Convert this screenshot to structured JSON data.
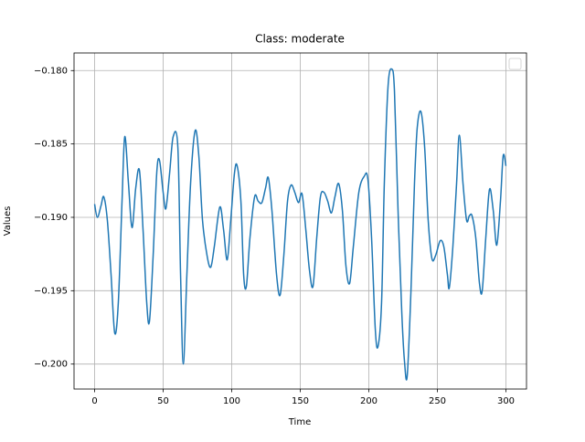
{
  "chart_data": {
    "type": "line",
    "title": "Class: moderate",
    "x_label": "Time",
    "y_label": "Values",
    "x": [
      0,
      2,
      4.7,
      6.7,
      9.3,
      12,
      14.7,
      17.3,
      20,
      22,
      24.7,
      27.3,
      30,
      32.7,
      35.3,
      38,
      40,
      42.7,
      45.3,
      47.3,
      50,
      52,
      54.7,
      57.3,
      60.7,
      62.7,
      64.7,
      67.3,
      70,
      73.3,
      76,
      78.7,
      82,
      84.7,
      87.3,
      91.3,
      94,
      96.7,
      99.3,
      102,
      104,
      106.7,
      108.7,
      110.7,
      113.3,
      116.7,
      119.3,
      122,
      124.7,
      126.7,
      129.3,
      132.7,
      135.3,
      138,
      140.7,
      143.3,
      146,
      148.7,
      151.3,
      154,
      156.7,
      159.3,
      162,
      164.7,
      167.3,
      170,
      172.7,
      175.3,
      178,
      180.7,
      183.3,
      186,
      188.7,
      192.7,
      196.7,
      199.3,
      202,
      204.7,
      206.7,
      209.3,
      211.3,
      214,
      216.7,
      218.7,
      221.3,
      224,
      226,
      228,
      230.7,
      233.3,
      235.3,
      238,
      240.7,
      243.3,
      246,
      248.7,
      252,
      254.7,
      257.3,
      258.7,
      261.3,
      264,
      266,
      268.7,
      271.3,
      273.3,
      275.3,
      278,
      280.7,
      282.7,
      285.3,
      288,
      290.7,
      293.3,
      296,
      298,
      300
    ],
    "series": [
      {
        "color": "#1f77b4",
        "values": [
          -0.1891,
          -0.19,
          -0.1892,
          -0.1886,
          -0.1902,
          -0.1939,
          -0.1979,
          -0.1958,
          -0.1889,
          -0.1845,
          -0.1877,
          -0.1907,
          -0.188,
          -0.1868,
          -0.1908,
          -0.1958,
          -0.1971,
          -0.1926,
          -0.187,
          -0.1861,
          -0.1883,
          -0.1894,
          -0.187,
          -0.1845,
          -0.1852,
          -0.1939,
          -0.2,
          -0.1939,
          -0.1877,
          -0.1841,
          -0.1858,
          -0.1902,
          -0.1926,
          -0.1934,
          -0.192,
          -0.1893,
          -0.1908,
          -0.1929,
          -0.1902,
          -0.187,
          -0.1865,
          -0.1889,
          -0.1939,
          -0.1947,
          -0.1914,
          -0.1886,
          -0.1889,
          -0.189,
          -0.188,
          -0.1873,
          -0.1895,
          -0.1939,
          -0.1953,
          -0.1926,
          -0.1889,
          -0.1878,
          -0.1883,
          -0.189,
          -0.1884,
          -0.1908,
          -0.1936,
          -0.1947,
          -0.1914,
          -0.1886,
          -0.1883,
          -0.1889,
          -0.1897,
          -0.1886,
          -0.1877,
          -0.1895,
          -0.1933,
          -0.1945,
          -0.192,
          -0.1883,
          -0.1872,
          -0.1874,
          -0.1914,
          -0.1976,
          -0.1988,
          -0.1958,
          -0.1877,
          -0.1811,
          -0.1799,
          -0.1814,
          -0.1895,
          -0.1964,
          -0.1998,
          -0.2008,
          -0.1951,
          -0.1877,
          -0.1839,
          -0.1828,
          -0.1852,
          -0.1902,
          -0.1928,
          -0.1926,
          -0.1916,
          -0.192,
          -0.1939,
          -0.1948,
          -0.192,
          -0.1877,
          -0.1844,
          -0.1877,
          -0.1902,
          -0.1899,
          -0.1899,
          -0.1914,
          -0.1945,
          -0.195,
          -0.1914,
          -0.1881,
          -0.1895,
          -0.1919,
          -0.1889,
          -0.1858,
          -0.1865
        ]
      }
    ],
    "xlim": [
      -15,
      315
    ],
    "xticks": [
      0,
      50,
      100,
      150,
      200,
      250,
      300
    ],
    "ylim": [
      -0.2017,
      -0.1788
    ],
    "yticks": [
      {
        "value": -0.2,
        "label": "−0.200"
      },
      {
        "value": -0.195,
        "label": "−0.195"
      },
      {
        "value": -0.19,
        "label": "−0.190"
      },
      {
        "value": -0.185,
        "label": "−0.185"
      },
      {
        "value": -0.18,
        "label": "−0.180"
      }
    ],
    "grid": true
  }
}
